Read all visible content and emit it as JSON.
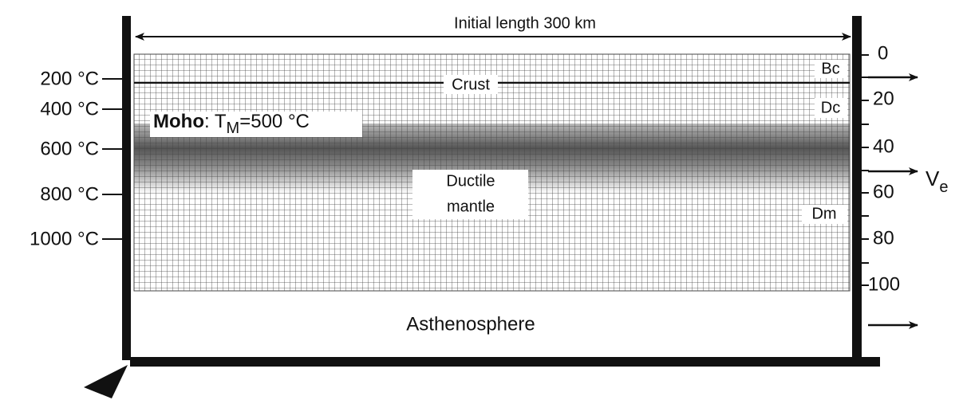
{
  "title": "Initial length 300 km",
  "temperatures": [
    "200 °C",
    "400 °C",
    "600 °C",
    "800 °C",
    "1000 °C"
  ],
  "depths": [
    0,
    20,
    40,
    60,
    80,
    100
  ],
  "layers": {
    "bc": "Bc",
    "dc": "Dc",
    "dm": "Dm",
    "crust": "Crust",
    "ductile": [
      "Ductile",
      "mantle"
    ],
    "asthenosphere": "Asthenosphere"
  },
  "moho": {
    "name": "Moho",
    "text": ": T",
    "sub": "M",
    "rest": "=500 °C"
  },
  "velocity": {
    "symbol": "V",
    "sub": "e"
  }
}
